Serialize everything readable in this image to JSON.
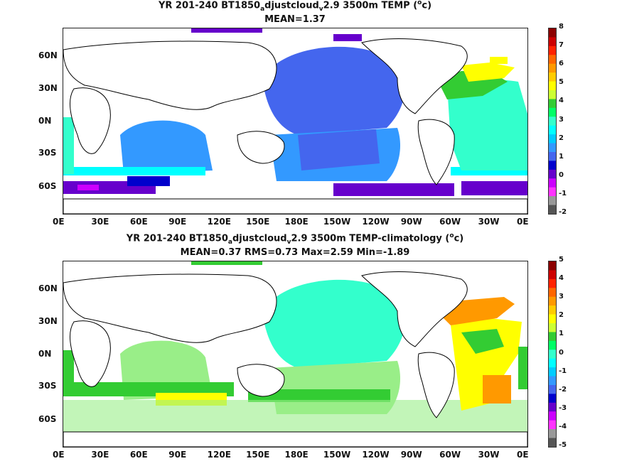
{
  "chart_data": [
    {
      "type": "heatmap",
      "title_parts": [
        "YR 201-240 BT1850",
        "a",
        "djustcloud",
        "v",
        "2.9 3500m TEMP (",
        "o",
        "c)"
      ],
      "subtitle": "MEAN=1.37",
      "x_ticks": [
        "0E",
        "30E",
        "60E",
        "90E",
        "120E",
        "150E",
        "180E",
        "150W",
        "120W",
        "90W",
        "60W",
        "30W",
        "0E"
      ],
      "y_ticks": [
        "60N",
        "30N",
        "0N",
        "30S",
        "60S"
      ],
      "colorbar": {
        "ticks": [
          "8",
          "7",
          "6",
          "5",
          "4",
          "3",
          "2",
          "1",
          "0",
          "-1",
          "-2"
        ],
        "colors": [
          "#8b0000",
          "#cc0000",
          "#ff2200",
          "#ff6600",
          "#ff9900",
          "#ffcc00",
          "#ffff00",
          "#ccff33",
          "#33cc33",
          "#00ff66",
          "#33ffcc",
          "#00ffff",
          "#00ccff",
          "#3399ff",
          "#4466ee",
          "#0000cc",
          "#6600cc",
          "#cc00ff",
          "#ff33ff",
          "#999999",
          "#555555"
        ]
      },
      "regions": [
        {
          "name": "north-pacific",
          "color": "#4466ee"
        },
        {
          "name": "indian-ocean",
          "color": "#3399ff"
        },
        {
          "name": "south-pacific",
          "color": "#3399ff"
        },
        {
          "name": "southern-ocean-cyan",
          "color": "#00ffff"
        },
        {
          "name": "southern-ocean-purple",
          "color": "#6600cc"
        },
        {
          "name": "north-atlantic-yellow",
          "color": "#ffff00"
        },
        {
          "name": "atlantic-green",
          "color": "#33ffcc"
        }
      ]
    },
    {
      "type": "heatmap",
      "title_parts": [
        "YR 201-240 BT1850",
        "a",
        "djustcloud",
        "v",
        "2.9 3500m TEMP-climatology (",
        "o",
        "c)"
      ],
      "subtitle": "MEAN=0.37   RMS=0.73   Max=2.59   Min=-1.89",
      "x_ticks": [
        "0E",
        "30E",
        "60E",
        "90E",
        "120E",
        "150E",
        "180E",
        "150W",
        "120W",
        "90W",
        "60W",
        "30W",
        "0E"
      ],
      "y_ticks": [
        "60N",
        "30N",
        "0N",
        "30S",
        "60S"
      ],
      "colorbar": {
        "ticks": [
          "5",
          "4",
          "3",
          "2",
          "1",
          "0",
          "-1",
          "-2",
          "-3",
          "-4",
          "-5"
        ],
        "colors": [
          "#8b0000",
          "#cc0000",
          "#ff2200",
          "#ff6600",
          "#ff9900",
          "#ffcc00",
          "#ffff00",
          "#ccff33",
          "#33cc33",
          "#00ff66",
          "#33ffcc",
          "#00ffff",
          "#00ccff",
          "#3399ff",
          "#4466ee",
          "#0000cc",
          "#6600cc",
          "#cc00ff",
          "#ff33ff",
          "#999999",
          "#555555"
        ]
      },
      "regions": [
        {
          "name": "north-pacific",
          "color": "#33ffcc"
        },
        {
          "name": "indian-ocean",
          "color": "#99ee88"
        },
        {
          "name": "south-pacific",
          "color": "#99ee88"
        },
        {
          "name": "southern-ocean-green",
          "color": "#33cc33"
        },
        {
          "name": "north-atlantic-orange",
          "color": "#ff9900"
        },
        {
          "name": "atlantic-yellow",
          "color": "#ffff00"
        }
      ]
    }
  ]
}
